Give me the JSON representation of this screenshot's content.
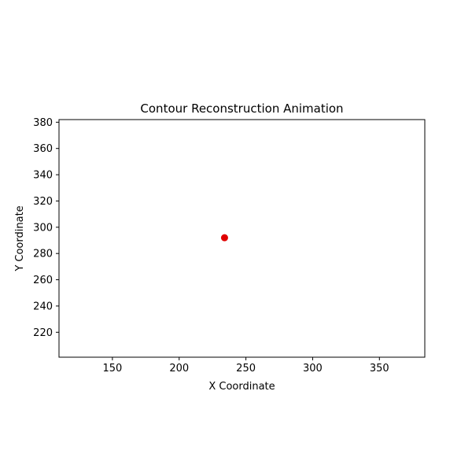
{
  "chart_data": {
    "type": "scatter",
    "title": "Contour Reconstruction Animation",
    "xlabel": "X Coordinate",
    "ylabel": "Y Coordinate",
    "xlim": [
      110,
      384
    ],
    "ylim": [
      201,
      382
    ],
    "x_ticks": [
      150,
      200,
      250,
      300,
      350
    ],
    "y_ticks": [
      220,
      240,
      260,
      280,
      300,
      320,
      340,
      360,
      380
    ],
    "grid": false,
    "points": [
      {
        "x": 234,
        "y": 292
      }
    ],
    "point_color": "#e00000"
  }
}
